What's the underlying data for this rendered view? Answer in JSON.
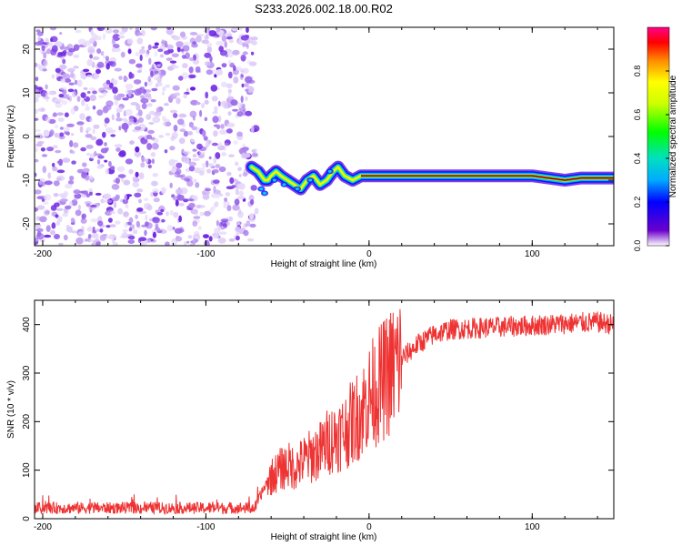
{
  "title": "S233.2026.002.18.00.R02",
  "chart_data": [
    {
      "type": "heatmap",
      "name": "spectrogram",
      "xlabel": "Height of straight line (km)",
      "ylabel": "Frequency (Hz)",
      "xlim": [
        -205,
        150
      ],
      "ylim": [
        -25,
        25
      ],
      "xticks": [
        -200,
        -100,
        0,
        100
      ],
      "yticks": [
        -20,
        -10,
        0,
        10,
        20
      ],
      "noise_region_x": [
        -205,
        -70
      ],
      "tone_track": {
        "x": [
          -72,
          -68,
          -66,
          -64,
          -62,
          -60,
          -57,
          -54,
          -50,
          -46,
          -42,
          -38,
          -34,
          -30,
          -26,
          -22,
          -19,
          -15,
          -10,
          -5,
          0,
          10,
          30,
          50,
          70,
          90,
          100,
          110,
          120,
          130,
          140,
          150
        ],
        "freq": [
          -7,
          -8,
          -9,
          -10,
          -10,
          -9,
          -8,
          -9,
          -10,
          -11,
          -12,
          -10,
          -9,
          -11,
          -10,
          -8,
          -7,
          -9,
          -10,
          -9,
          -9,
          -9,
          -9,
          -9,
          -9,
          -9,
          -9,
          -9.5,
          -10,
          -9.5,
          -9.5,
          -9.5
        ]
      },
      "colorbar": {
        "label": "Normalized spectral amplitude",
        "ticks": [
          0.0,
          0.2,
          0.4,
          0.6,
          0.8
        ],
        "tick_labels": [
          "0.0",
          "0.2",
          "0.4",
          "0.6",
          "0.8"
        ],
        "range": [
          0,
          1
        ]
      }
    },
    {
      "type": "line",
      "name": "snr",
      "xlabel": "Height of straight line (km)",
      "ylabel": "SNR (10 * v/v)",
      "xlim": [
        -205,
        150
      ],
      "ylim": [
        0,
        450
      ],
      "xticks": [
        -200,
        -100,
        0,
        100
      ],
      "yticks": [
        0,
        100,
        200,
        300,
        400
      ],
      "color": "#ee3333",
      "series": [
        {
          "name": "SNR",
          "x": [
            -205,
            -150,
            -100,
            -70,
            -62,
            -55,
            -50,
            -45,
            -40,
            -35,
            -30,
            -25,
            -20,
            -15,
            -10,
            -5,
            0,
            5,
            10,
            15,
            20,
            30,
            40,
            50,
            60,
            80,
            100,
            120,
            140,
            150
          ],
          "values": [
            22,
            22,
            22,
            22,
            80,
            100,
            110,
            105,
            120,
            130,
            140,
            160,
            170,
            180,
            200,
            220,
            250,
            270,
            290,
            310,
            330,
            360,
            380,
            390,
            392,
            395,
            398,
            402,
            405,
            400
          ]
        }
      ]
    }
  ]
}
